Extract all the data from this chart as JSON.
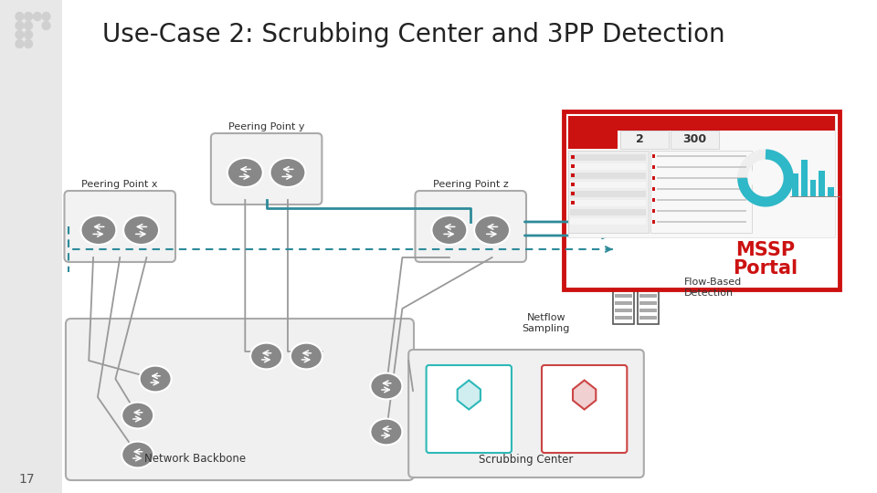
{
  "title": "Use-Case 2: Scrubbing Center and 3PP Detection",
  "title_fontsize": 20,
  "bg_color": "#ffffff",
  "slide_bg": "#ffffff",
  "page_num": "17",
  "labels": {
    "peering_x": "Peering Point x",
    "peering_y": "Peering Point y",
    "peering_z": "Peering Point z",
    "mssp_line1": "MSSP",
    "mssp_line2": "Portal",
    "flow_based": "Flow-Based\nDetection",
    "netflow": "Netflow\nSampling",
    "network_backbone": "Network Backbone",
    "scrubbing_center": "Scrubbing Center"
  },
  "router_color": "#888888",
  "box_bg": "#f0f0f0",
  "box_border": "#aaaaaa",
  "teal_color": "#2e8b9a",
  "dashed_color": "#2e8b9a",
  "mssp_border": "#cc1111",
  "mssp_text_color": "#cc1111",
  "scrubbing_bg": "#f0f0f0",
  "scrubbing_border": "#aaaaaa",
  "left_bg": "#e8e8e8",
  "line_color": "#999999"
}
